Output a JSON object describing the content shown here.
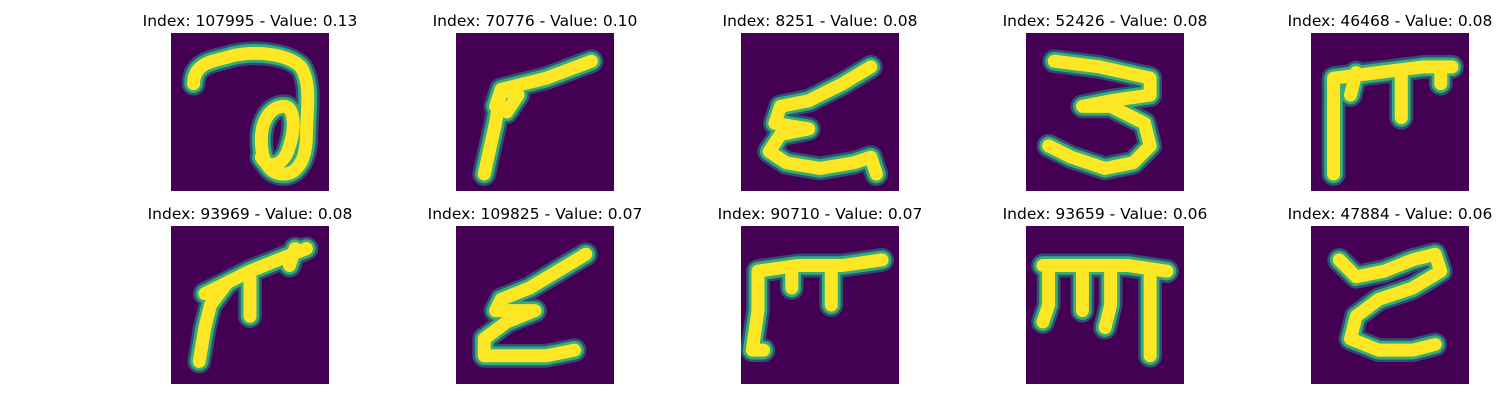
{
  "figure": {
    "panels": [
      {
        "title": "Index: 107995 - Value: 0.13",
        "glyph": "circle-loop-stroke"
      },
      {
        "title": "Index: 70776 - Value: 0.10",
        "glyph": "angled-loop-stroke"
      },
      {
        "title": "Index: 8251 - Value: 0.08",
        "glyph": "zigzag-stroke"
      },
      {
        "title": "Index: 52426 - Value: 0.08",
        "glyph": "three-shaped-stroke"
      },
      {
        "title": "Index: 46468 - Value: 0.08",
        "glyph": "gate-stroke"
      },
      {
        "title": "Index: 93969 - Value: 0.08",
        "glyph": "slanted-gate-stroke"
      },
      {
        "title": "Index: 109825 - Value: 0.07",
        "glyph": "slanted-zigzag-stroke"
      },
      {
        "title": "Index: 90710 - Value: 0.07",
        "glyph": "gate-stroke"
      },
      {
        "title": "Index: 93659 - Value: 0.06",
        "glyph": "comb-stroke"
      },
      {
        "title": "Index: 47884 - Value: 0.06",
        "glyph": "curved-zigzag-stroke"
      }
    ],
    "colors": {
      "background": "#440154",
      "stroke_core": "#fde725",
      "stroke_edge": "#35b779",
      "stroke_halo": "#21908d"
    }
  }
}
